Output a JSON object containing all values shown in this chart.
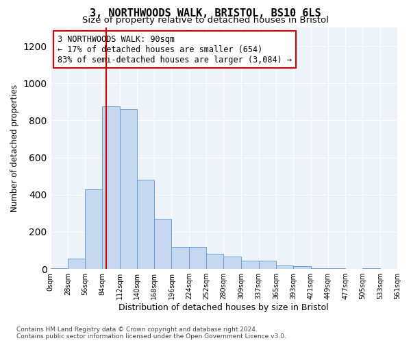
{
  "title": "3, NORTHWOODS WALK, BRISTOL, BS10 6LS",
  "subtitle": "Size of property relative to detached houses in Bristol",
  "xlabel": "Distribution of detached houses by size in Bristol",
  "ylabel": "Number of detached properties",
  "bar_color": "#c5d8f0",
  "bar_edge_color": "#6a9fd8",
  "background_color": "#eef2f9",
  "annotation_text": "3 NORTHWOODS WALK: 90sqm\n← 17% of detached houses are smaller (654)\n83% of semi-detached houses are larger (3,084) →",
  "annotation_box_color": "#ffffff",
  "annotation_border_color": "#cc0000",
  "vline_x": 90,
  "vline_color": "#cc0000",
  "footnote": "Contains HM Land Registry data © Crown copyright and database right 2024.\nContains public sector information licensed under the Open Government Licence v3.0.",
  "bin_edges": [
    0,
    28,
    56,
    84,
    112,
    140,
    168,
    196,
    224,
    252,
    280,
    309,
    337,
    365,
    393,
    421,
    449,
    477,
    505,
    533,
    561
  ],
  "bin_labels": [
    "0sqm",
    "28sqm",
    "56sqm",
    "84sqm",
    "112sqm",
    "140sqm",
    "168sqm",
    "196sqm",
    "224sqm",
    "252sqm",
    "280sqm",
    "309sqm",
    "337sqm",
    "365sqm",
    "393sqm",
    "421sqm",
    "449sqm",
    "477sqm",
    "505sqm",
    "533sqm",
    "561sqm"
  ],
  "counts": [
    5,
    55,
    430,
    875,
    860,
    480,
    270,
    120,
    120,
    80,
    65,
    45,
    45,
    20,
    15,
    5,
    5,
    0,
    3,
    0
  ],
  "ylim": [
    0,
    1300
  ],
  "yticks": [
    0,
    200,
    400,
    600,
    800,
    1000,
    1200
  ]
}
